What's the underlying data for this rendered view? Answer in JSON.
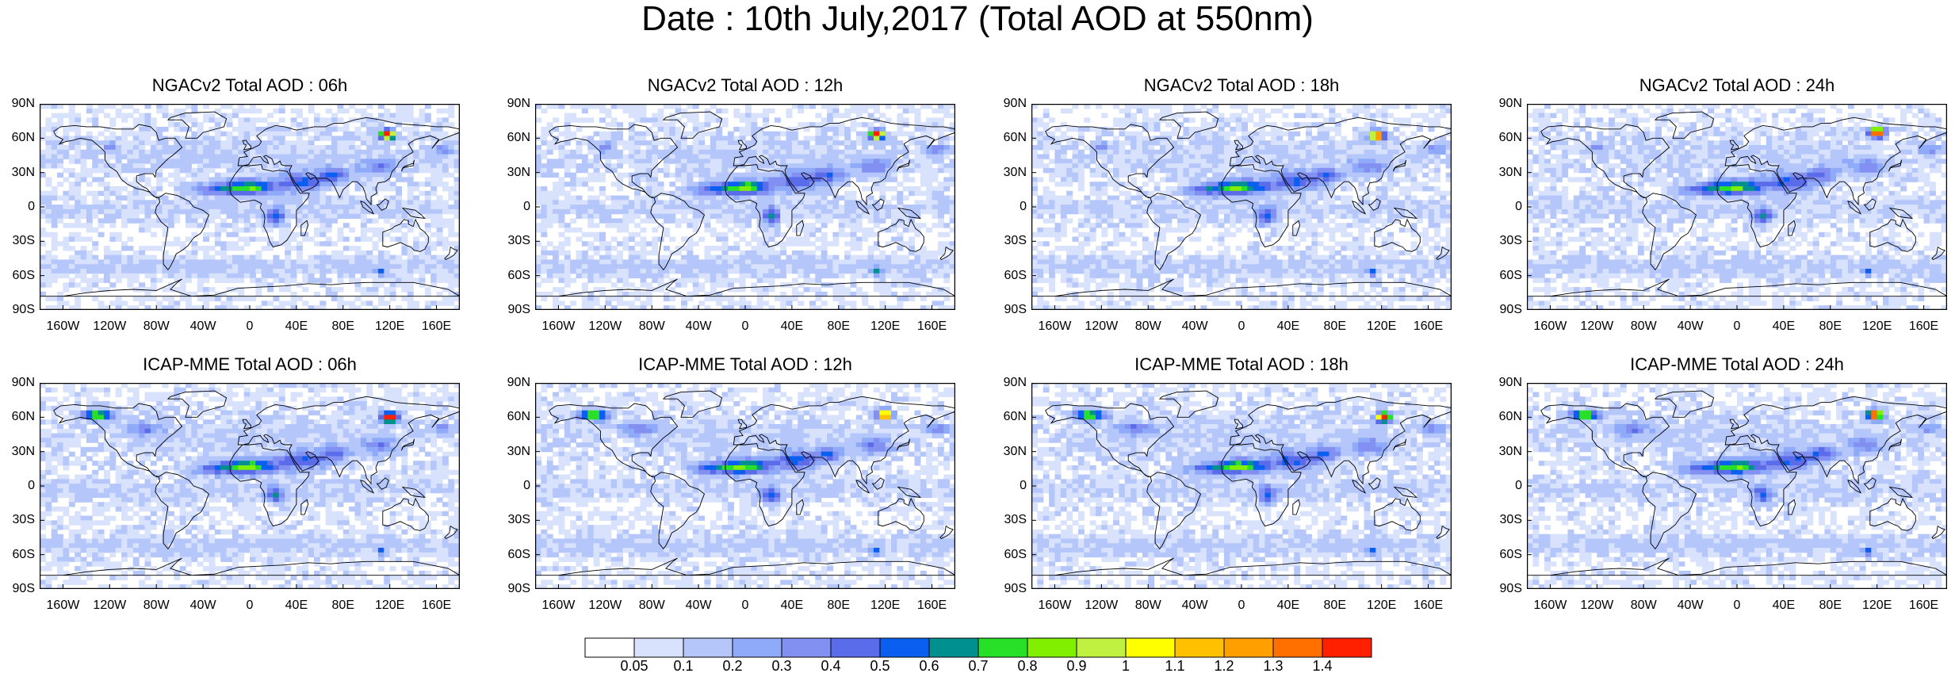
{
  "title": "Date : 10th July,2017 (Total AOD at 550nm)",
  "panels": [
    {
      "title": "NGACv2 Total AOD : 06h",
      "model": "NGACv2",
      "hour": 6,
      "smoke_lon": 118,
      "smoke_lat": 63
    },
    {
      "title": "NGACv2 Total AOD : 12h",
      "model": "NGACv2",
      "hour": 12,
      "smoke_lon": 113,
      "smoke_lat": 63
    },
    {
      "title": "NGACv2 Total AOD : 18h",
      "model": "NGACv2",
      "hour": 18,
      "smoke_lon": 116,
      "smoke_lat": 62
    },
    {
      "title": "NGACv2 Total AOD : 24h",
      "model": "NGACv2",
      "hour": 24,
      "smoke_lon": 120,
      "smoke_lat": 65
    },
    {
      "title": "ICAP-MME Total AOD : 06h",
      "model": "ICAP-MME",
      "hour": 6,
      "smoke_lon": 120,
      "smoke_lat": 60
    },
    {
      "title": "ICAP-MME Total AOD : 12h",
      "model": "ICAP-MME",
      "hour": 12,
      "smoke_lon": 120,
      "smoke_lat": 62
    },
    {
      "title": "ICAP-MME Total AOD : 18h",
      "model": "ICAP-MME",
      "hour": 18,
      "smoke_lon": 122,
      "smoke_lat": 60
    },
    {
      "title": "ICAP-MME Total AOD : 24h",
      "model": "ICAP-MME",
      "hour": 24,
      "smoke_lon": 118,
      "smoke_lat": 62
    }
  ],
  "lat_ticks": [
    {
      "label": "90N",
      "lat": 90
    },
    {
      "label": "60N",
      "lat": 60
    },
    {
      "label": "30N",
      "lat": 30
    },
    {
      "label": "0",
      "lat": 0
    },
    {
      "label": "30S",
      "lat": -30
    },
    {
      "label": "60S",
      "lat": -60
    },
    {
      "label": "90S",
      "lat": -90
    }
  ],
  "lon_ticks": [
    {
      "label": "160W",
      "lon": -160
    },
    {
      "label": "120W",
      "lon": -120
    },
    {
      "label": "80W",
      "lon": -80
    },
    {
      "label": "40W",
      "lon": -40
    },
    {
      "label": "0",
      "lon": 0
    },
    {
      "label": "40E",
      "lon": 40
    },
    {
      "label": "80E",
      "lon": 80
    },
    {
      "label": "120E",
      "lon": 120
    },
    {
      "label": "160E",
      "lon": 160
    }
  ],
  "colorbar": {
    "labels": [
      "0.05",
      "0.1",
      "0.2",
      "0.3",
      "0.4",
      "0.5",
      "0.6",
      "0.7",
      "0.8",
      "0.9",
      "1",
      "1.1",
      "1.2",
      "1.3",
      "1.4"
    ],
    "colors": [
      "#ffffff",
      "#d8e2fc",
      "#b4c6fa",
      "#8eaaf8",
      "#8290f2",
      "#5b6cea",
      "#0a5ef0",
      "#009090",
      "#28e028",
      "#80f000",
      "#c0f040",
      "#ffff00",
      "#ffc000",
      "#ffa000",
      "#ff7000",
      "#ff2000"
    ]
  },
  "map": {
    "lon_range": [
      -180,
      180
    ],
    "lat_range": [
      -90,
      90
    ],
    "coastline_color": "#000000"
  }
}
